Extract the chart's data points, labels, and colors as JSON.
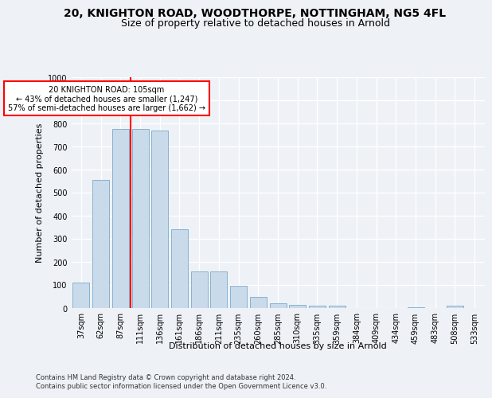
{
  "title1": "20, KNIGHTON ROAD, WOODTHORPE, NOTTINGHAM, NG5 4FL",
  "title2": "Size of property relative to detached houses in Arnold",
  "xlabel": "Distribution of detached houses by size in Arnold",
  "ylabel": "Number of detached properties",
  "categories": [
    "37sqm",
    "62sqm",
    "87sqm",
    "111sqm",
    "136sqm",
    "161sqm",
    "186sqm",
    "211sqm",
    "235sqm",
    "260sqm",
    "285sqm",
    "310sqm",
    "335sqm",
    "359sqm",
    "384sqm",
    "409sqm",
    "434sqm",
    "459sqm",
    "483sqm",
    "508sqm",
    "533sqm"
  ],
  "values": [
    110,
    555,
    775,
    775,
    770,
    340,
    160,
    160,
    95,
    50,
    20,
    15,
    10,
    10,
    0,
    0,
    0,
    5,
    0,
    10,
    0
  ],
  "bar_color": "#c9daea",
  "bar_edge_color": "#7aaac8",
  "vline_x_index": 3,
  "vline_color": "red",
  "annotation_text": "20 KNIGHTON ROAD: 105sqm\n← 43% of detached houses are smaller (1,247)\n57% of semi-detached houses are larger (1,662) →",
  "annotation_box_color": "white",
  "annotation_box_edge_color": "red",
  "ylim": [
    0,
    1000
  ],
  "yticks": [
    0,
    100,
    200,
    300,
    400,
    500,
    600,
    700,
    800,
    900,
    1000
  ],
  "footer1": "Contains HM Land Registry data © Crown copyright and database right 2024.",
  "footer2": "Contains public sector information licensed under the Open Government Licence v3.0.",
  "bg_color": "#eef2f7",
  "plot_bg_color": "#eef2f7",
  "grid_color": "white",
  "title1_fontsize": 10,
  "title2_fontsize": 9,
  "ylabel_fontsize": 8,
  "xlabel_fontsize": 8,
  "tick_fontsize": 7,
  "footer_fontsize": 6
}
